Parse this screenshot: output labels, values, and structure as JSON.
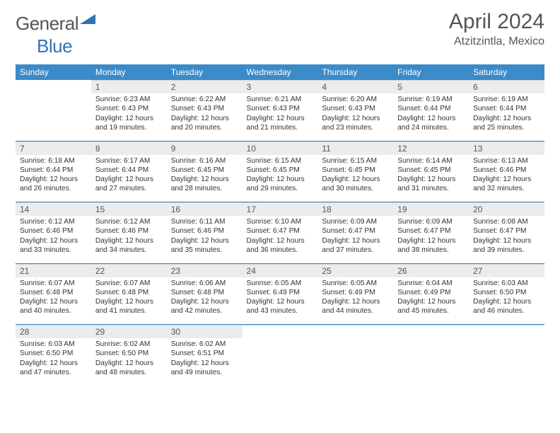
{
  "brand": {
    "part1": "General",
    "part2": "Blue",
    "color1": "#555555",
    "color2": "#2e75b6"
  },
  "title": "April 2024",
  "location": "Atzitzintla, Mexico",
  "weekdays": [
    "Sunday",
    "Monday",
    "Tuesday",
    "Wednesday",
    "Thursday",
    "Friday",
    "Saturday"
  ],
  "header_bg": "#3b8bc9",
  "bar_bg": "#ececec",
  "weeks": [
    [
      {
        "n": "",
        "sr": "",
        "ss": "",
        "dl": ""
      },
      {
        "n": "1",
        "sr": "Sunrise: 6:23 AM",
        "ss": "Sunset: 6:43 PM",
        "dl": "Daylight: 12 hours and 19 minutes."
      },
      {
        "n": "2",
        "sr": "Sunrise: 6:22 AM",
        "ss": "Sunset: 6:43 PM",
        "dl": "Daylight: 12 hours and 20 minutes."
      },
      {
        "n": "3",
        "sr": "Sunrise: 6:21 AM",
        "ss": "Sunset: 6:43 PM",
        "dl": "Daylight: 12 hours and 21 minutes."
      },
      {
        "n": "4",
        "sr": "Sunrise: 6:20 AM",
        "ss": "Sunset: 6:43 PM",
        "dl": "Daylight: 12 hours and 23 minutes."
      },
      {
        "n": "5",
        "sr": "Sunrise: 6:19 AM",
        "ss": "Sunset: 6:44 PM",
        "dl": "Daylight: 12 hours and 24 minutes."
      },
      {
        "n": "6",
        "sr": "Sunrise: 6:19 AM",
        "ss": "Sunset: 6:44 PM",
        "dl": "Daylight: 12 hours and 25 minutes."
      }
    ],
    [
      {
        "n": "7",
        "sr": "Sunrise: 6:18 AM",
        "ss": "Sunset: 6:44 PM",
        "dl": "Daylight: 12 hours and 26 minutes."
      },
      {
        "n": "8",
        "sr": "Sunrise: 6:17 AM",
        "ss": "Sunset: 6:44 PM",
        "dl": "Daylight: 12 hours and 27 minutes."
      },
      {
        "n": "9",
        "sr": "Sunrise: 6:16 AM",
        "ss": "Sunset: 6:45 PM",
        "dl": "Daylight: 12 hours and 28 minutes."
      },
      {
        "n": "10",
        "sr": "Sunrise: 6:15 AM",
        "ss": "Sunset: 6:45 PM",
        "dl": "Daylight: 12 hours and 29 minutes."
      },
      {
        "n": "11",
        "sr": "Sunrise: 6:15 AM",
        "ss": "Sunset: 6:45 PM",
        "dl": "Daylight: 12 hours and 30 minutes."
      },
      {
        "n": "12",
        "sr": "Sunrise: 6:14 AM",
        "ss": "Sunset: 6:45 PM",
        "dl": "Daylight: 12 hours and 31 minutes."
      },
      {
        "n": "13",
        "sr": "Sunrise: 6:13 AM",
        "ss": "Sunset: 6:46 PM",
        "dl": "Daylight: 12 hours and 32 minutes."
      }
    ],
    [
      {
        "n": "14",
        "sr": "Sunrise: 6:12 AM",
        "ss": "Sunset: 6:46 PM",
        "dl": "Daylight: 12 hours and 33 minutes."
      },
      {
        "n": "15",
        "sr": "Sunrise: 6:12 AM",
        "ss": "Sunset: 6:46 PM",
        "dl": "Daylight: 12 hours and 34 minutes."
      },
      {
        "n": "16",
        "sr": "Sunrise: 6:11 AM",
        "ss": "Sunset: 6:46 PM",
        "dl": "Daylight: 12 hours and 35 minutes."
      },
      {
        "n": "17",
        "sr": "Sunrise: 6:10 AM",
        "ss": "Sunset: 6:47 PM",
        "dl": "Daylight: 12 hours and 36 minutes."
      },
      {
        "n": "18",
        "sr": "Sunrise: 6:09 AM",
        "ss": "Sunset: 6:47 PM",
        "dl": "Daylight: 12 hours and 37 minutes."
      },
      {
        "n": "19",
        "sr": "Sunrise: 6:09 AM",
        "ss": "Sunset: 6:47 PM",
        "dl": "Daylight: 12 hours and 38 minutes."
      },
      {
        "n": "20",
        "sr": "Sunrise: 6:08 AM",
        "ss": "Sunset: 6:47 PM",
        "dl": "Daylight: 12 hours and 39 minutes."
      }
    ],
    [
      {
        "n": "21",
        "sr": "Sunrise: 6:07 AM",
        "ss": "Sunset: 6:48 PM",
        "dl": "Daylight: 12 hours and 40 minutes."
      },
      {
        "n": "22",
        "sr": "Sunrise: 6:07 AM",
        "ss": "Sunset: 6:48 PM",
        "dl": "Daylight: 12 hours and 41 minutes."
      },
      {
        "n": "23",
        "sr": "Sunrise: 6:06 AM",
        "ss": "Sunset: 6:48 PM",
        "dl": "Daylight: 12 hours and 42 minutes."
      },
      {
        "n": "24",
        "sr": "Sunrise: 6:05 AM",
        "ss": "Sunset: 6:49 PM",
        "dl": "Daylight: 12 hours and 43 minutes."
      },
      {
        "n": "25",
        "sr": "Sunrise: 6:05 AM",
        "ss": "Sunset: 6:49 PM",
        "dl": "Daylight: 12 hours and 44 minutes."
      },
      {
        "n": "26",
        "sr": "Sunrise: 6:04 AM",
        "ss": "Sunset: 6:49 PM",
        "dl": "Daylight: 12 hours and 45 minutes."
      },
      {
        "n": "27",
        "sr": "Sunrise: 6:03 AM",
        "ss": "Sunset: 6:50 PM",
        "dl": "Daylight: 12 hours and 46 minutes."
      }
    ],
    [
      {
        "n": "28",
        "sr": "Sunrise: 6:03 AM",
        "ss": "Sunset: 6:50 PM",
        "dl": "Daylight: 12 hours and 47 minutes."
      },
      {
        "n": "29",
        "sr": "Sunrise: 6:02 AM",
        "ss": "Sunset: 6:50 PM",
        "dl": "Daylight: 12 hours and 48 minutes."
      },
      {
        "n": "30",
        "sr": "Sunrise: 6:02 AM",
        "ss": "Sunset: 6:51 PM",
        "dl": "Daylight: 12 hours and 49 minutes."
      },
      {
        "n": "",
        "sr": "",
        "ss": "",
        "dl": ""
      },
      {
        "n": "",
        "sr": "",
        "ss": "",
        "dl": ""
      },
      {
        "n": "",
        "sr": "",
        "ss": "",
        "dl": ""
      },
      {
        "n": "",
        "sr": "",
        "ss": "",
        "dl": ""
      }
    ]
  ]
}
